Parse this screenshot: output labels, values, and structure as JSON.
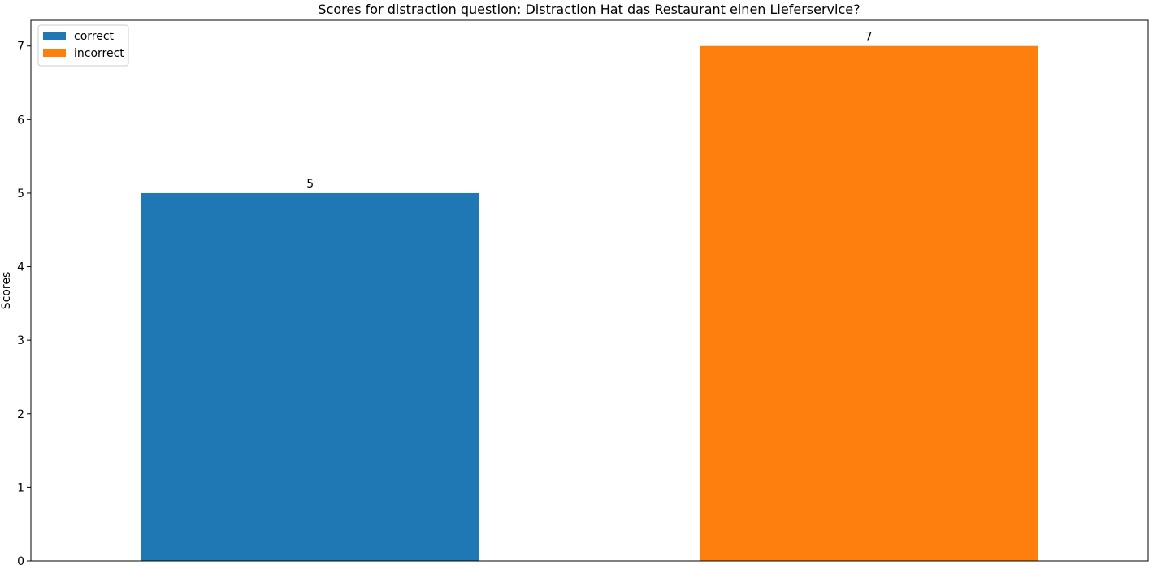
{
  "chart_data": {
    "type": "bar",
    "title": "Scores for distraction question: Distraction Hat das Restaurant einen Lieferservice?",
    "xlabel": "",
    "ylabel": "Scores",
    "ylim": [
      0,
      7.35
    ],
    "yticks": [
      0,
      1,
      2,
      3,
      4,
      5,
      6,
      7
    ],
    "grid": false,
    "legend_position": "top-left",
    "series": [
      {
        "name": "correct",
        "value": 5,
        "color": "#1f77b4"
      },
      {
        "name": "incorrect",
        "value": 7,
        "color": "#ff7f0e"
      }
    ]
  }
}
